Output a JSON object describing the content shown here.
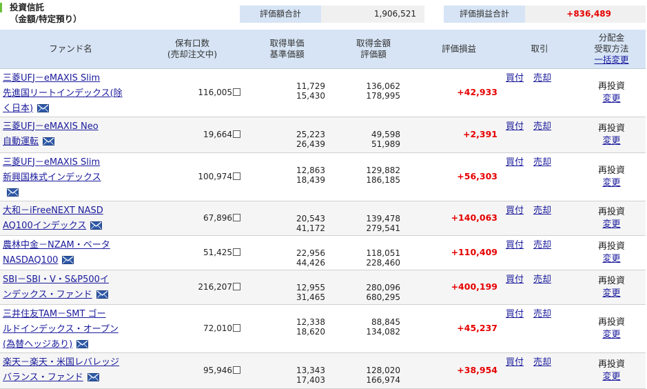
{
  "section": {
    "title_line1": "投資信託",
    "title_line2": "（金額/特定預り）"
  },
  "summary": {
    "valuation_label": "評価額合計",
    "valuation_value": "1,906,521",
    "pl_label": "評価損益合計",
    "pl_value": "+836,489"
  },
  "table": {
    "headers": {
      "fund_name": "ファンド名",
      "units_line1": "保有口数",
      "units_line2": "(売却注文中)",
      "cost_line1": "取得単価",
      "cost_line2": "基準価額",
      "amount_line1": "取得金額",
      "amount_line2": "評価額",
      "pl": "評価損益",
      "trade": "取引",
      "dist_line1": "分配金",
      "dist_line2": "受取方法",
      "dist_link": "一括変更"
    },
    "buy_label": "買付",
    "sell_label": "売却",
    "reinvest_label": "再投資",
    "change_label": "変更",
    "rows": [
      {
        "name_lines": [
          "三菱UFJ－eMAXIS Slim",
          "先進国リートインデックス(除",
          "く日本)"
        ],
        "units": "116,005",
        "unit_cost": "11,729",
        "nav": "15,430",
        "cost_amount": "136,062",
        "value": "178,995",
        "pl": "+42,933"
      },
      {
        "name_lines": [
          "三菱UFJ－eMAXIS Neo",
          "自動運転"
        ],
        "units": "19,664",
        "unit_cost": "25,223",
        "nav": "26,439",
        "cost_amount": "49,598",
        "value": "51,989",
        "pl": "+2,391"
      },
      {
        "name_lines": [
          "三菱UFJ－eMAXIS Slim",
          "新興国株式インデックス",
          ""
        ],
        "units": "100,974",
        "unit_cost": "12,863",
        "nav": "18,439",
        "cost_amount": "129,882",
        "value": "186,185",
        "pl": "+56,303"
      },
      {
        "name_lines": [
          "大和－iFreeNEXT NASD",
          "AQ100インデックス"
        ],
        "units": "67,896",
        "unit_cost": "20,543",
        "nav": "41,172",
        "cost_amount": "139,478",
        "value": "279,541",
        "pl": "+140,063"
      },
      {
        "name_lines": [
          "農林中金－NZAM・ベータ",
          "NASDAQ100"
        ],
        "units": "51,425",
        "unit_cost": "22,956",
        "nav": "44,426",
        "cost_amount": "118,051",
        "value": "228,460",
        "pl": "+110,409"
      },
      {
        "name_lines": [
          "SBI－SBI・V・S&P500イ",
          "ンデックス・ファンド"
        ],
        "units": "216,207",
        "unit_cost": "12,955",
        "nav": "31,465",
        "cost_amount": "280,096",
        "value": "680,295",
        "pl": "+400,199"
      },
      {
        "name_lines": [
          "三井住友TAM－SMT ゴー",
          "ルドインデックス・オープン",
          "(為替ヘッジあり)"
        ],
        "units": "72,010",
        "unit_cost": "12,338",
        "nav": "18,620",
        "cost_amount": "88,845",
        "value": "134,082",
        "pl": "+45,237"
      },
      {
        "name_lines": [
          "楽天－楽天・米国レバレッジ",
          "バランス・ファンド"
        ],
        "units": "95,946",
        "unit_cost": "13,343",
        "nav": "17,403",
        "cost_amount": "128,020",
        "value": "166,974",
        "pl": "+38,954"
      }
    ]
  },
  "colors": {
    "header_bg": "#d6e4f5",
    "link": "#1a1a9c",
    "positive": "#e60000",
    "accent": "#6cbf3a"
  }
}
